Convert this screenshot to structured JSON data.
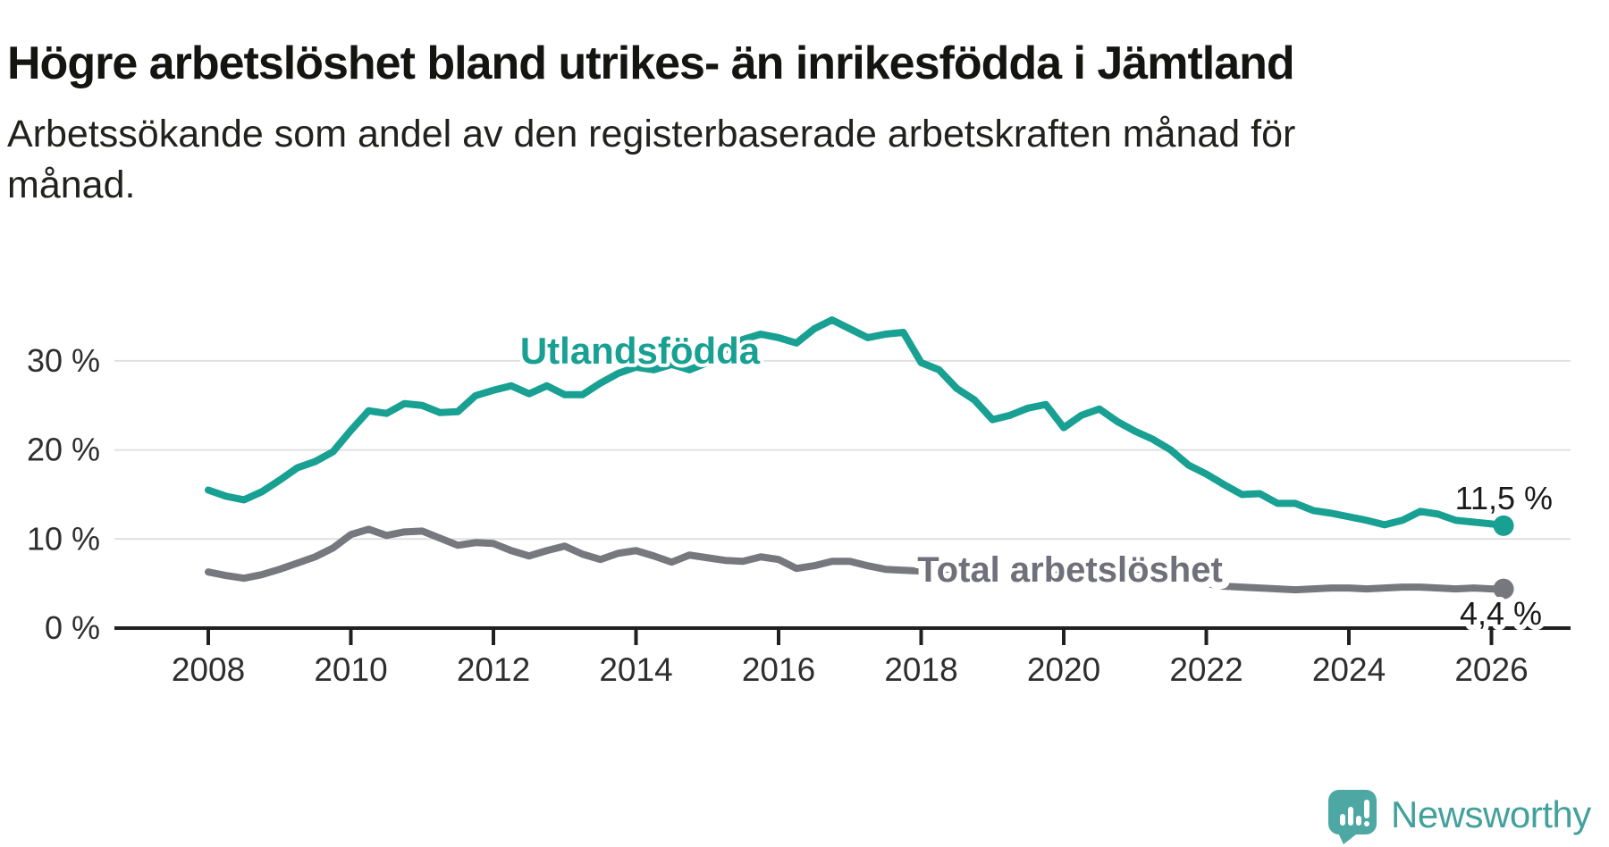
{
  "header": {
    "title": "Högre arbetslöshet bland utrikes- än inrikesfödda i Jämtland",
    "subtitle_lines": [
      "Arbetssökande som andel av den registerbaserade arbetskraften månad för",
      "månad."
    ]
  },
  "branding": {
    "name": "Newsworthy",
    "logo_icon": "speech-bubble-bar-chart-exclamation",
    "logo_color": "#4da8a3",
    "text_color": "#43a19c"
  },
  "colors": {
    "series_foreign": "#18a093",
    "series_total": "#77777e",
    "series_total_label": "#70707a",
    "axis": "#202020",
    "grid": "#e0e0e0",
    "tick_text": "#2e2e2e",
    "value_text": "#1a1a1a",
    "background": "#ffffff"
  },
  "chart_data": {
    "type": "line",
    "title": "Högre arbetslöshet bland utrikes- än inrikesfödda i Jämtland",
    "subtitle": "Arbetssökande som andel av den registerbaserade arbetskraften månad för månad.",
    "xlabel": "",
    "ylabel": "",
    "grid": true,
    "legend_position": "inline-labels",
    "xlim": [
      2007.7,
      2027.1
    ],
    "ylim": [
      0,
      37
    ],
    "x_ticks": [
      2008,
      2010,
      2012,
      2014,
      2016,
      2018,
      2020,
      2022,
      2024,
      2026
    ],
    "y_ticks": [
      {
        "value": 0,
        "label": "0 %"
      },
      {
        "value": 10,
        "label": "10 %"
      },
      {
        "value": 20,
        "label": "20 %"
      },
      {
        "value": 30,
        "label": "30 %"
      }
    ],
    "x": [
      2008,
      2008.25,
      2008.5,
      2008.75,
      2009,
      2009.25,
      2009.5,
      2009.75,
      2010,
      2010.25,
      2010.5,
      2010.75,
      2011,
      2011.25,
      2011.5,
      2011.75,
      2012,
      2012.25,
      2012.5,
      2012.75,
      2013,
      2013.25,
      2013.5,
      2013.75,
      2014,
      2014.25,
      2014.5,
      2014.75,
      2015,
      2015.25,
      2015.5,
      2015.75,
      2016,
      2016.25,
      2016.5,
      2016.75,
      2017,
      2017.25,
      2017.5,
      2017.75,
      2018,
      2018.25,
      2018.5,
      2018.75,
      2019,
      2019.25,
      2019.5,
      2019.75,
      2020,
      2020.25,
      2020.5,
      2020.75,
      2021,
      2021.25,
      2021.5,
      2021.75,
      2022,
      2022.25,
      2022.5,
      2022.75,
      2023,
      2023.25,
      2023.5,
      2023.75,
      2024,
      2024.25,
      2024.5,
      2024.75,
      2025,
      2025.25,
      2025.5,
      2025.75,
      2026,
      2026.17
    ],
    "series": [
      {
        "name": "Utlandsfödda",
        "color": "#18a093",
        "end_label": "11,5 %",
        "end_value": 11.5,
        "values": [
          15.5,
          14.8,
          14.4,
          15.3,
          16.6,
          18,
          18.7,
          19.8,
          22.2,
          24.4,
          24.1,
          25.2,
          25,
          24.2,
          24.3,
          26.1,
          26.7,
          27.2,
          26.3,
          27.2,
          26.2,
          26.2,
          27.5,
          28.6,
          29.3,
          29,
          29.6,
          29,
          29.8,
          31.2,
          32.4,
          33,
          32.6,
          32,
          33.6,
          34.6,
          33.6,
          32.6,
          33,
          33.2,
          29.8,
          29,
          26.9,
          25.6,
          23.4,
          23.9,
          24.7,
          25.1,
          22.5,
          23.9,
          24.6,
          23.2,
          22.1,
          21.2,
          20,
          18.3,
          17.3,
          16.1,
          15,
          15.1,
          14,
          14,
          13.2,
          12.9,
          12.5,
          12.1,
          11.6,
          12.1,
          13.1,
          12.8,
          12.1,
          11.9,
          11.7,
          11.5
        ]
      },
      {
        "name": "Total arbetslöshet",
        "color": "#77777e",
        "end_label": "4,4 %",
        "end_value": 4.4,
        "values": [
          6.3,
          5.9,
          5.6,
          6,
          6.6,
          7.3,
          8,
          9,
          10.5,
          11.1,
          10.4,
          10.8,
          10.9,
          10.1,
          9.3,
          9.6,
          9.5,
          8.7,
          8.1,
          8.7,
          9.2,
          8.3,
          7.7,
          8.4,
          8.7,
          8.1,
          7.4,
          8.2,
          7.9,
          7.6,
          7.5,
          8,
          7.7,
          6.7,
          7,
          7.5,
          7.5,
          7,
          6.6,
          6.5,
          6.4,
          6.1,
          5.9,
          6,
          6.1,
          5.9,
          5.8,
          6,
          6.4,
          6.9,
          6.7,
          6.3,
          6.1,
          5.8,
          5.5,
          5.2,
          5,
          4.7,
          4.6,
          4.5,
          4.4,
          4.3,
          4.4,
          4.5,
          4.5,
          4.4,
          4.5,
          4.6,
          4.6,
          4.5,
          4.4,
          4.5,
          4.4,
          4.4
        ]
      }
    ]
  }
}
